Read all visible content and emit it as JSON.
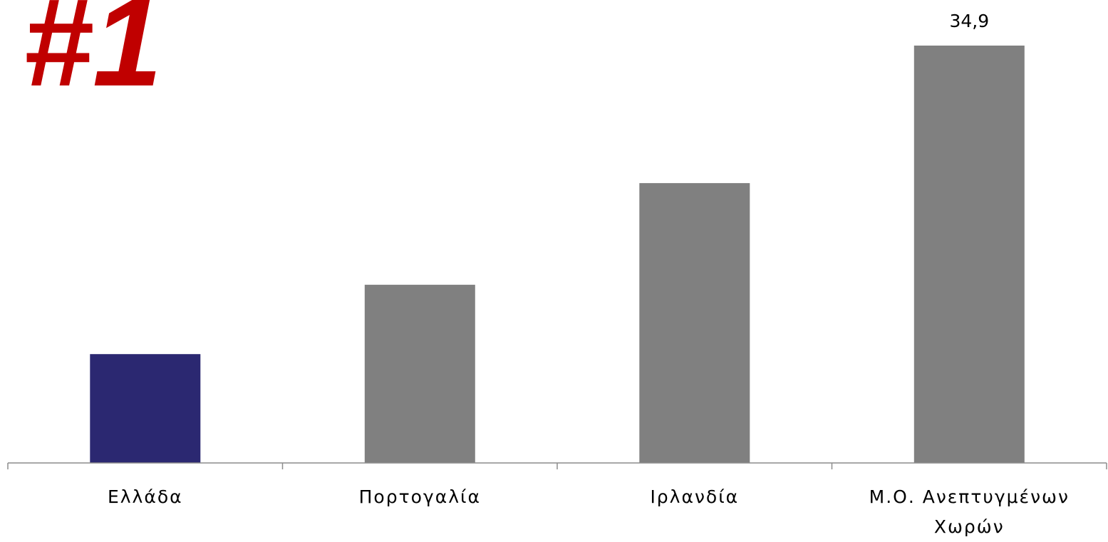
{
  "badge": {
    "text": "#1",
    "color": "#c00000"
  },
  "chart_data": {
    "type": "bar",
    "categories": [
      [
        "Ελλάδα"
      ],
      [
        "Πορτογαλία"
      ],
      [
        "Ιρλανδία"
      ],
      [
        "Μ.Ο. Ανεπτυγμένων",
        "Χωρών"
      ]
    ],
    "values": [
      9.1,
      14.9,
      23.4,
      34.9
    ],
    "bar_colors": [
      "#2b2871",
      "#808080",
      "#808080",
      "#808080"
    ],
    "data_labels": [
      "",
      "",
      "",
      "34,9"
    ],
    "title": "",
    "xlabel": "",
    "ylabel": "",
    "ylim": [
      0,
      34.9
    ],
    "grid": false,
    "legend": "none"
  }
}
